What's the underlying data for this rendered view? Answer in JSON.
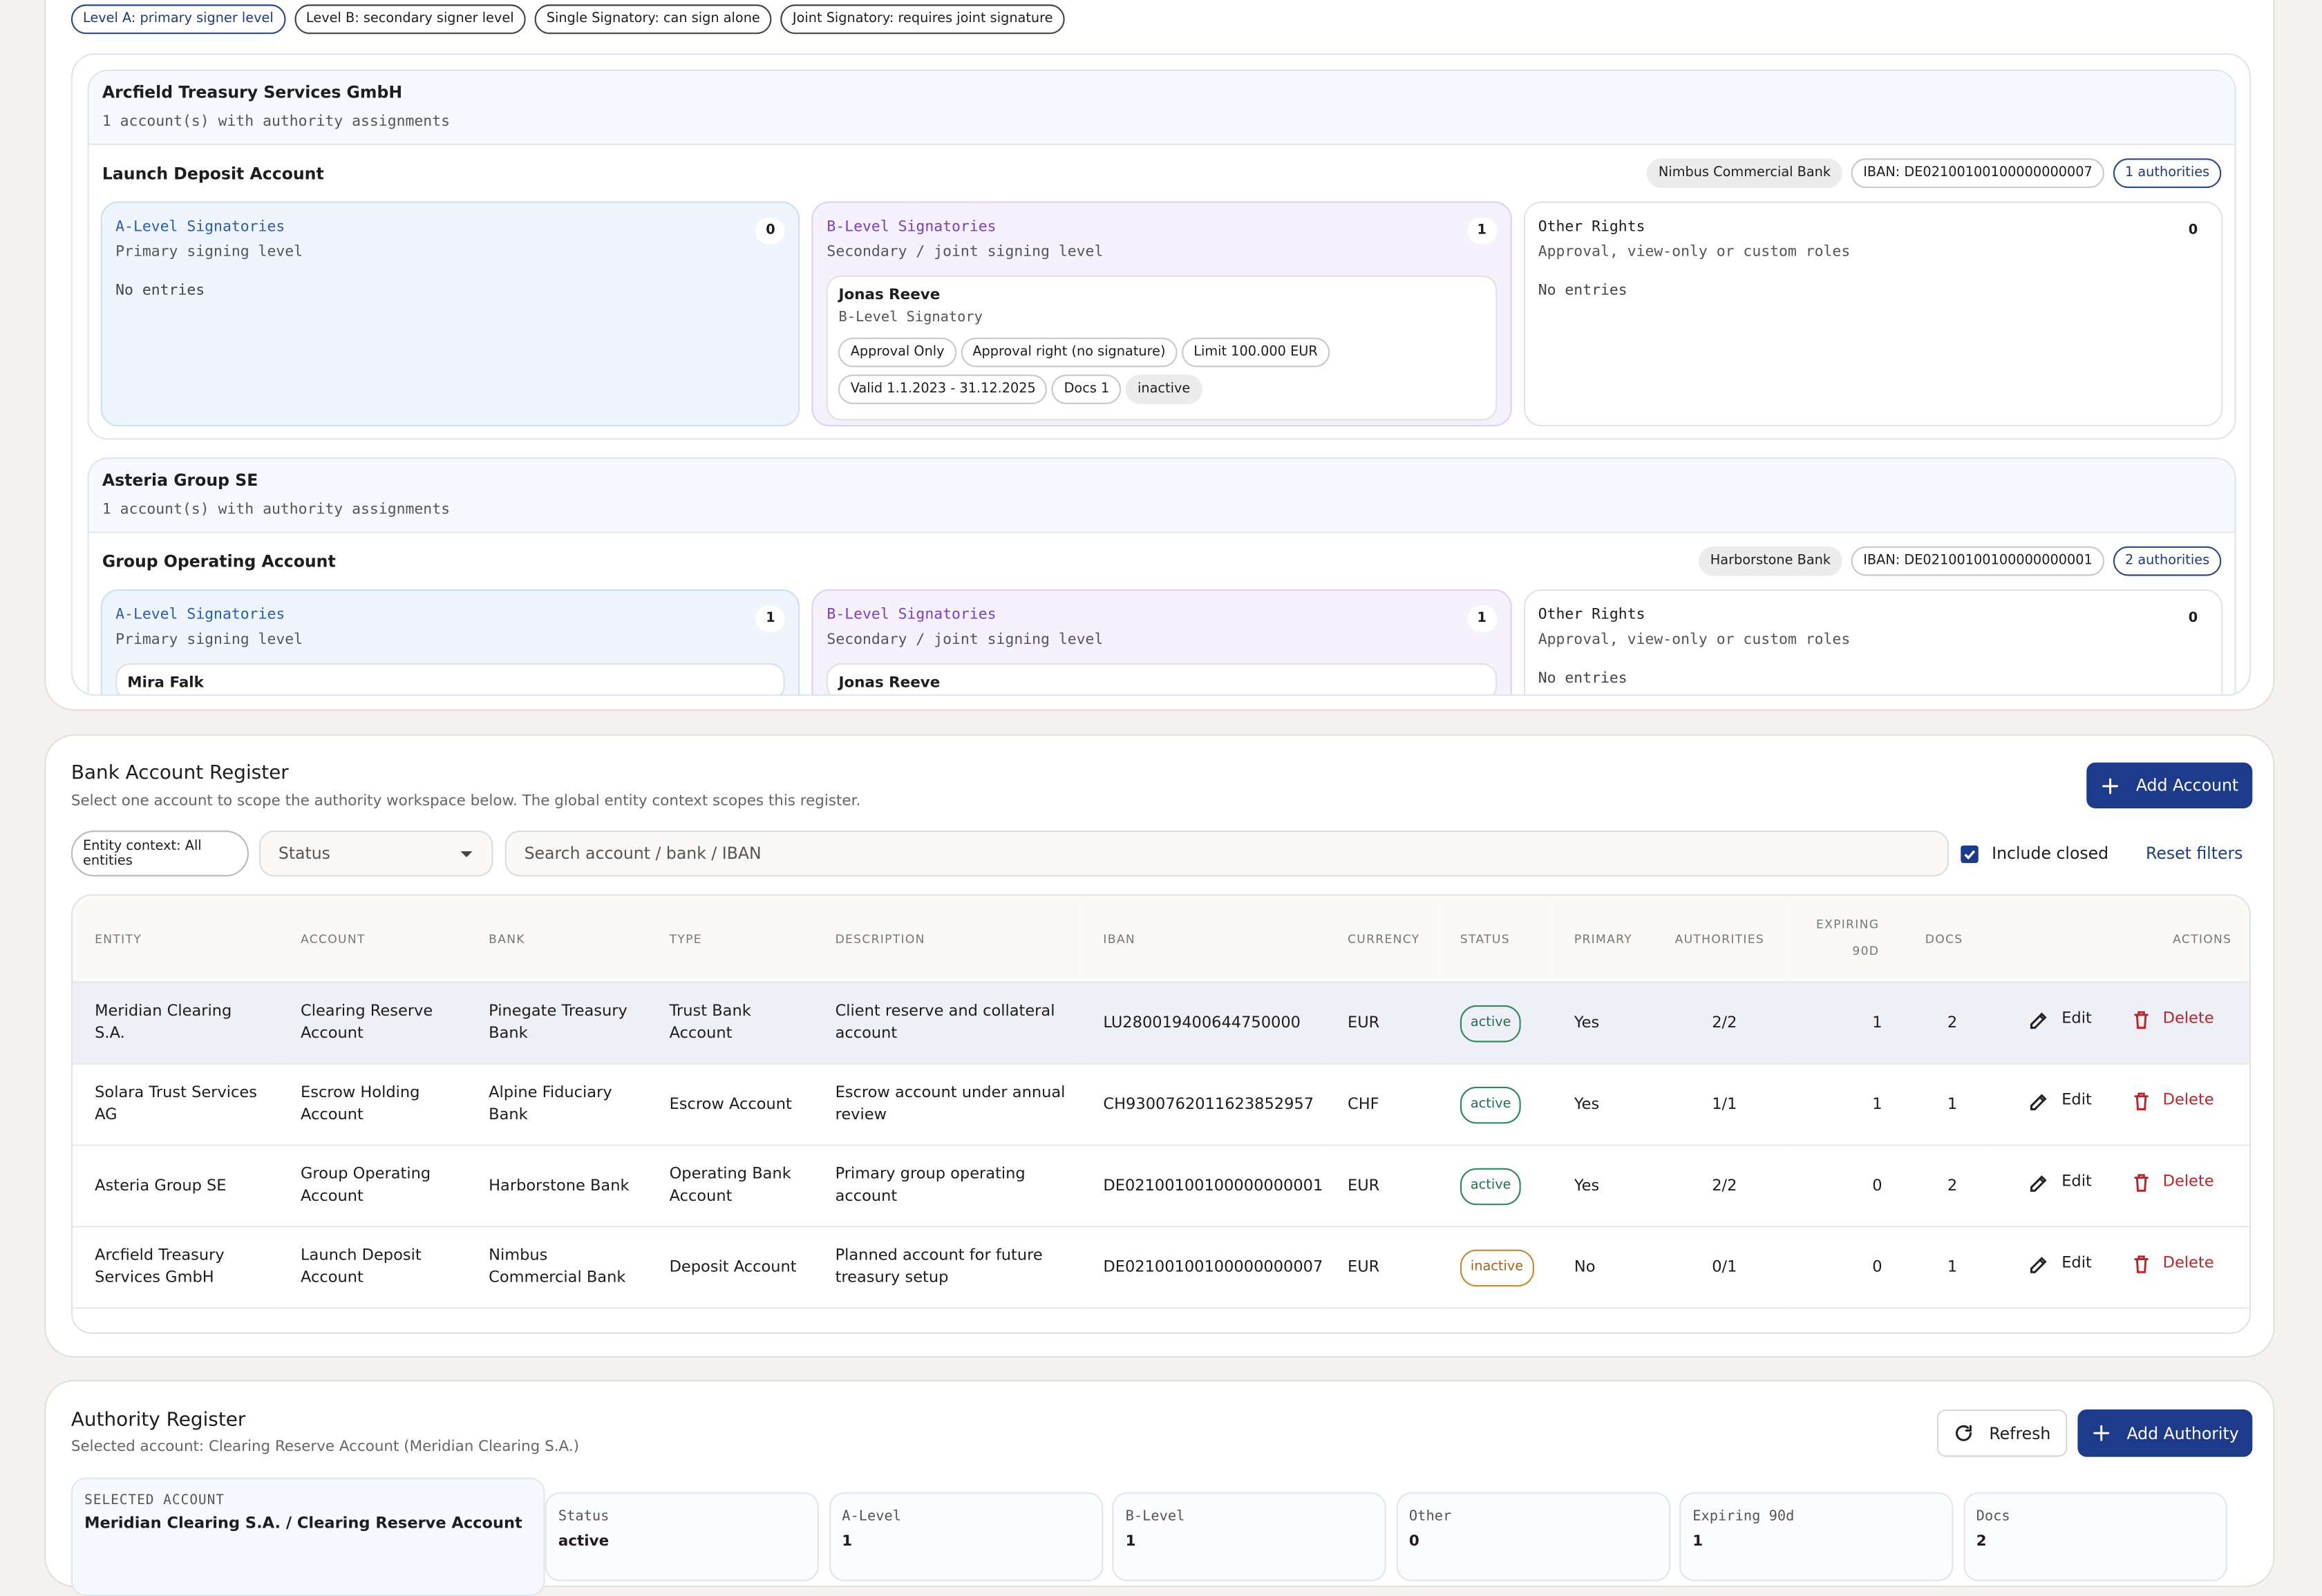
{
  "legend_chips": [
    "Level A: primary signer level",
    "Level B: secondary signer level",
    "Single Signatory: can sign alone",
    "Joint Signatory: requires joint signature"
  ],
  "entities": [
    {
      "name": "Arcfield Treasury Services GmbH",
      "subtitle": "1 account(s) with authority assignments",
      "account": {
        "name": "Launch Deposit Account",
        "bank": "Nimbus Commercial Bank",
        "iban": "IBAN: DE02100100100000000007",
        "authorities": "1 authorities",
        "columns": [
          {
            "title": "A-Level Signatories",
            "subtitle": "Primary signing level",
            "count": 0,
            "empty": "No entries",
            "entries": []
          },
          {
            "title": "B-Level Signatories",
            "subtitle": "Secondary / joint signing level",
            "count": 1,
            "entries": [
              {
                "name": "Jonas Reeve",
                "role": "B-Level Signatory",
                "tags": [
                  "Approval Only",
                  "Approval right (no signature)",
                  "Limit 100.000 EUR",
                  "Valid 1.1.2023 - 31.12.2025",
                  "Docs 1"
                ],
                "state": "inactive"
              }
            ]
          },
          {
            "title": "Other Rights",
            "subtitle": "Approval, view-only or custom roles",
            "count": 0,
            "empty": "No entries",
            "entries": []
          }
        ]
      }
    },
    {
      "name": "Asteria Group SE",
      "subtitle": "1 account(s) with authority assignments",
      "account": {
        "name": "Group Operating Account",
        "bank": "Harborstone Bank",
        "iban": "IBAN: DE02100100100000000001",
        "authorities": "2 authorities",
        "columns": [
          {
            "title": "A-Level Signatories",
            "subtitle": "Primary signing level",
            "count": 1,
            "entries": [
              {
                "name": "Mira Falk"
              }
            ]
          },
          {
            "title": "B-Level Signatories",
            "subtitle": "Secondary / joint signing level",
            "count": 1,
            "entries": [
              {
                "name": "Jonas Reeve"
              }
            ]
          },
          {
            "title": "Other Rights",
            "subtitle": "Approval, view-only or custom roles",
            "count": 0,
            "empty": "No entries",
            "entries": []
          }
        ]
      }
    }
  ],
  "register": {
    "title": "Bank Account Register",
    "subtitle": "Select one account to scope the authority workspace below. The global entity context scopes this register.",
    "add_button": "Add Account",
    "entity_context": "Entity context: All entities",
    "status_placeholder": "Status",
    "search_placeholder": "Search account / bank / IBAN",
    "include_closed": "Include closed",
    "reset_filters": "Reset filters",
    "columns": [
      "ENTITY",
      "ACCOUNT",
      "BANK",
      "TYPE",
      "DESCRIPTION",
      "IBAN",
      "CURRENCY",
      "STATUS",
      "PRIMARY",
      "AUTHORITIES",
      "EXPIRING 90D",
      "DOCS",
      "ACTIONS"
    ],
    "edit": "Edit",
    "delete": "Delete",
    "rows": [
      [
        "Meridian Clearing S.A.",
        "Clearing Reserve Account",
        "Pinegate Treasury Bank",
        "Trust Bank Account",
        "Client reserve and collateral account",
        "LU280019400644750000",
        "EUR",
        "active",
        "Yes",
        "2/2",
        1,
        2
      ],
      [
        "Solara Trust Services AG",
        "Escrow Holding Account",
        "Alpine Fiduciary Bank",
        "Escrow Account",
        "Escrow account under annual review",
        "CH9300762011623852957",
        "CHF",
        "active",
        "Yes",
        "1/1",
        1,
        1
      ],
      [
        "Asteria Group SE",
        "Group Operating Account",
        "Harborstone Bank",
        "Operating Bank Account",
        "Primary group operating account",
        "DE02100100100000000001",
        "EUR",
        "active",
        "Yes",
        "2/2",
        0,
        2
      ],
      [
        "Arcfield Treasury Services GmbH",
        "Launch Deposit Account",
        "Nimbus Commercial Bank",
        "Deposit Account",
        "Planned account for future treasury setup",
        "DE02100100100000000007",
        "EUR",
        "inactive",
        "No",
        "0/1",
        0,
        1
      ]
    ]
  },
  "authority": {
    "title": "Authority Register",
    "subtitle": "Selected account: Clearing Reserve Account (Meridian Clearing S.A.)",
    "refresh": "Refresh",
    "add_button": "Add Authority",
    "selected_label": "SELECTED ACCOUNT",
    "selected_value": "Meridian Clearing S.A. / Clearing Reserve Account",
    "stats": [
      {
        "label": "Status",
        "value": "active"
      },
      {
        "label": "A-Level",
        "value": 1
      },
      {
        "label": "B-Level",
        "value": 1
      },
      {
        "label": "Other",
        "value": 0
      },
      {
        "label": "Expiring 90d",
        "value": 1
      },
      {
        "label": "Docs",
        "value": 2
      }
    ]
  }
}
